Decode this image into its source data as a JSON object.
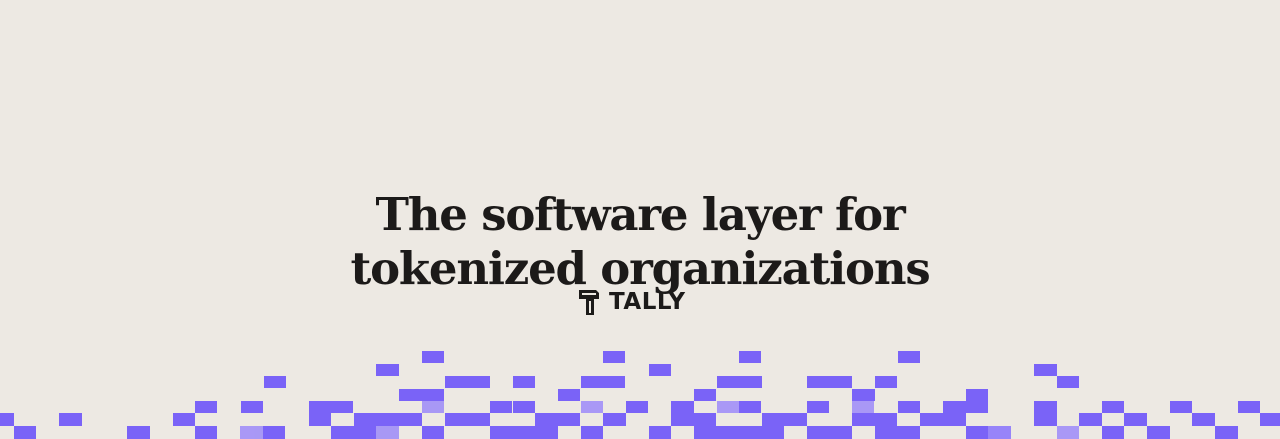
{
  "hero": {
    "headline_line1": "The software layer for",
    "headline_line2": "tokenized organizations"
  },
  "brand": {
    "name": "TALLY",
    "logo_icon": "tally-logo-icon"
  },
  "colors": {
    "background": "#ede9e3",
    "text": "#1c1a19",
    "accent": "#7a63f7",
    "accent_light": "#9c8af9"
  }
}
